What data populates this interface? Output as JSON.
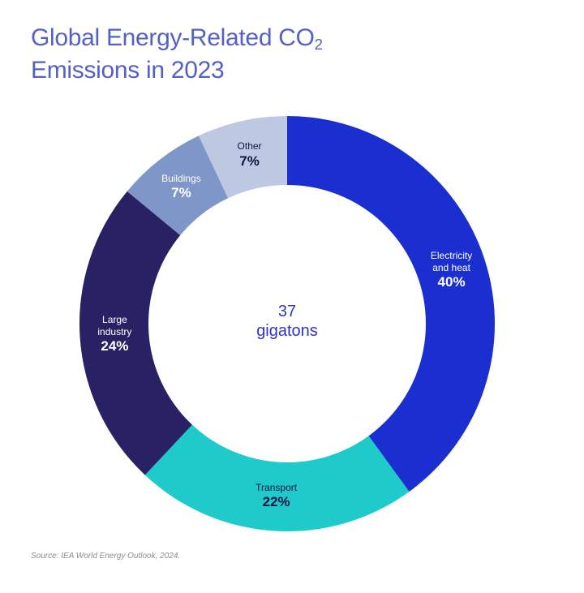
{
  "title": {
    "line1_pre": "Global Energy-Related CO",
    "line1_sub": "2",
    "line2": "Emissions in 2023"
  },
  "center": {
    "value": "37",
    "unit": "gigatons"
  },
  "source": "Source: IEA World Energy Outlook, 2024.",
  "colors": {
    "title_text": "#5560c6",
    "center_text": "#2e35c3",
    "dark_label_text": "#14143f",
    "light_label_text": "#ffffff",
    "source_text": "#8c8c8c",
    "background": "#ffffff"
  },
  "chart_data": {
    "type": "pie",
    "subtype": "donut",
    "title": "Global Energy-Related CO2 Emissions in 2023",
    "center_label": "37 gigatons",
    "total_value_gigatons": 37,
    "units": "% of total emissions",
    "start_angle_deg": 0,
    "direction": "clockwise",
    "legend_position": "on-segment-labels",
    "categories": [
      "Electricity and heat",
      "Transport",
      "Large industry",
      "Buildings",
      "Other"
    ],
    "values": [
      40,
      22,
      24,
      7,
      7
    ],
    "segments": [
      {
        "key": "electricity-and-heat",
        "label_lines": [
          "Electricity",
          "and heat"
        ],
        "percent": "40%",
        "value": 40,
        "color": "#1b2ed0",
        "label_color": "#ffffff"
      },
      {
        "key": "transport",
        "label_lines": [
          "Transport"
        ],
        "percent": "22%",
        "value": 22,
        "color": "#1fcaca",
        "label_color": "#14143f"
      },
      {
        "key": "large-industry",
        "label_lines": [
          "Large",
          "industry"
        ],
        "percent": "24%",
        "value": 24,
        "color": "#282264",
        "label_color": "#ffffff"
      },
      {
        "key": "buildings",
        "label_lines": [
          "Buildings"
        ],
        "percent": "7%",
        "value": 7,
        "color": "#7e96c8",
        "label_color": "#ffffff"
      },
      {
        "key": "other",
        "label_lines": [
          "Other"
        ],
        "percent": "7%",
        "value": 7,
        "color": "#bdc9e3",
        "label_color": "#14143f"
      }
    ]
  }
}
